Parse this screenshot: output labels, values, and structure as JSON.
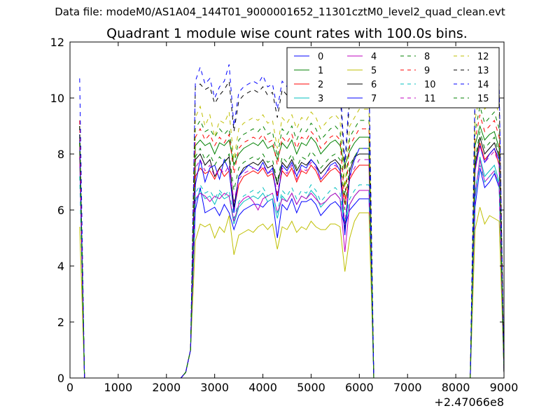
{
  "page_title": "Data file: modeM0/AS1A04_144T01_9000001652_11301cztM0_level2_quad_clean.evt",
  "chart_data": {
    "type": "line",
    "title": "Quadrant 1 module wise count rates with 100.0s bins.",
    "xlabel": "",
    "ylabel": "",
    "x_offset_label": "+2.47066e8",
    "xlim": [
      0,
      9000
    ],
    "ylim": [
      0,
      12
    ],
    "xticks": [
      0,
      1000,
      2000,
      3000,
      4000,
      5000,
      6000,
      7000,
      8000,
      9000
    ],
    "yticks": [
      0,
      2,
      4,
      6,
      8,
      10,
      12
    ],
    "grid": false,
    "legend_position": "top-right",
    "x": [
      200,
      300,
      400,
      500,
      600,
      700,
      800,
      900,
      1000,
      1100,
      1200,
      1300,
      1400,
      1500,
      1600,
      1700,
      1800,
      1900,
      2000,
      2100,
      2200,
      2300,
      2400,
      2500,
      2600,
      2700,
      2800,
      2900,
      3000,
      3100,
      3200,
      3300,
      3400,
      3500,
      3600,
      3700,
      3800,
      3900,
      4000,
      4100,
      4200,
      4300,
      4400,
      4500,
      4600,
      4700,
      4800,
      4900,
      5000,
      5100,
      5200,
      5300,
      5400,
      5500,
      5600,
      5700,
      5800,
      5900,
      6000,
      6100,
      6200,
      6300,
      6400,
      6500,
      6600,
      6700,
      6800,
      6900,
      7000,
      7100,
      7200,
      7300,
      7400,
      7500,
      7600,
      7700,
      7800,
      7900,
      8000,
      8100,
      8200,
      8300,
      8400,
      8500,
      8600,
      8700,
      8800,
      8900
    ],
    "gaps": [
      [
        400,
        2300
      ],
      [
        6400,
        8200
      ]
    ],
    "active_windows": [
      [
        200,
        300
      ],
      [
        2400,
        6300
      ],
      [
        8300,
        8900
      ]
    ],
    "series": [
      {
        "name": "0",
        "color": "#0000ff",
        "dash": "solid",
        "values_peak": 8.7,
        "values_window1": [
          6.0,
          6.8,
          5.9,
          6.0,
          6.1,
          5.8,
          6.2,
          5.9,
          5.3,
          5.8,
          6.0,
          6.1,
          6.2,
          6.2,
          6.1,
          6.3,
          6.4,
          5.0,
          6.2,
          6.0,
          6.4,
          5.9,
          6.3,
          6.3,
          6.4,
          6.2,
          5.8,
          6.0,
          6.2,
          6.3,
          6.1,
          5.4,
          6.0,
          6.2,
          6.4
        ],
        "values_window2": [
          6.1,
          7.5,
          6.8,
          7.0,
          7.3,
          6.8,
          0.2
        ]
      },
      {
        "name": "1",
        "color": "#008000",
        "dash": "solid",
        "values_peak": 8.6,
        "values_window1": [
          8.3,
          8.5,
          8.3,
          8.4,
          8.0,
          8.4,
          8.3,
          8.5,
          7.6,
          8.0,
          8.2,
          8.3,
          8.4,
          8.3,
          8.5,
          8.2,
          8.3,
          7.8,
          8.4,
          8.2,
          8.5,
          8.0,
          8.4,
          8.3,
          8.6,
          8.4,
          8.0,
          8.2,
          8.4,
          8.5,
          8.3,
          7.6,
          8.1,
          8.4,
          8.6
        ],
        "values_window2": [
          8.3,
          9.0,
          8.5,
          8.7,
          8.8,
          8.2,
          0.2
        ]
      },
      {
        "name": "2",
        "color": "#ff0000",
        "dash": "solid",
        "values_peak": 8.4,
        "values_window1": [
          7.2,
          7.5,
          7.3,
          7.4,
          7.1,
          7.5,
          7.2,
          7.4,
          6.0,
          6.9,
          7.2,
          7.3,
          7.4,
          7.3,
          7.5,
          7.2,
          7.3,
          6.5,
          7.4,
          7.2,
          7.5,
          7.0,
          7.4,
          7.3,
          7.6,
          7.4,
          7.0,
          7.2,
          7.4,
          7.5,
          7.3,
          6.2,
          7.1,
          7.4,
          7.6
        ],
        "values_window2": [
          7.4,
          8.4,
          7.8,
          8.0,
          8.2,
          7.6,
          0.2
        ]
      },
      {
        "name": "3",
        "color": "#00bfbf",
        "dash": "solid",
        "values_peak": 8.0,
        "values_window1": [
          6.3,
          6.7,
          6.4,
          6.5,
          6.2,
          6.6,
          6.4,
          6.5,
          5.5,
          6.1,
          6.3,
          6.4,
          6.5,
          6.4,
          6.6,
          6.3,
          6.4,
          5.7,
          6.5,
          6.3,
          6.6,
          6.2,
          6.5,
          6.4,
          6.7,
          6.5,
          6.1,
          6.3,
          6.5,
          6.6,
          6.4,
          5.5,
          6.2,
          6.5,
          6.7
        ],
        "values_window2": [
          6.4,
          7.9,
          7.2,
          7.4,
          7.6,
          7.0,
          0.2
        ]
      },
      {
        "name": "4",
        "color": "#bf00bf",
        "dash": "solid",
        "values_peak": 7.9,
        "values_window1": [
          6.4,
          6.6,
          6.5,
          6.3,
          6.5,
          6.4,
          6.6,
          6.5,
          5.6,
          6.2,
          6.4,
          6.5,
          6.3,
          6.0,
          6.4,
          6.5,
          6.6,
          5.9,
          6.4,
          6.3,
          6.6,
          6.2,
          6.5,
          6.4,
          6.6,
          6.4,
          6.2,
          6.3,
          6.5,
          6.6,
          6.4,
          4.5,
          6.2,
          6.5,
          6.7
        ],
        "values_window2": [
          6.6,
          7.8,
          7.0,
          7.2,
          7.4,
          6.9,
          0.2
        ]
      },
      {
        "name": "5",
        "color": "#bfbf00",
        "dash": "solid",
        "values_peak": 5.4,
        "values_window1": [
          4.9,
          5.5,
          5.4,
          5.5,
          5.0,
          5.4,
          5.2,
          5.8,
          4.4,
          5.1,
          5.2,
          5.3,
          5.2,
          5.4,
          5.5,
          5.3,
          5.5,
          4.6,
          5.4,
          5.3,
          5.6,
          5.2,
          5.4,
          5.3,
          5.6,
          5.4,
          5.3,
          5.3,
          5.5,
          5.5,
          5.4,
          3.8,
          5.0,
          5.6,
          5.9
        ],
        "values_window2": [
          5.3,
          6.1,
          5.5,
          5.8,
          5.7,
          5.6,
          0.2
        ]
      },
      {
        "name": "6",
        "color": "#000000",
        "dash": "solid",
        "values_peak": 8.5,
        "values_window1": [
          7.8,
          8.0,
          7.6,
          7.8,
          7.2,
          7.5,
          7.7,
          7.9,
          6.1,
          7.2,
          7.5,
          7.6,
          7.7,
          7.6,
          7.8,
          7.5,
          7.6,
          6.9,
          7.7,
          7.5,
          7.8,
          7.4,
          7.7,
          7.6,
          7.8,
          7.6,
          7.3,
          7.5,
          7.7,
          7.8,
          7.6,
          5.2,
          7.4,
          7.9,
          8.0
        ],
        "values_window2": [
          7.6,
          8.6,
          8.0,
          8.2,
          8.4,
          7.9,
          0.2
        ]
      },
      {
        "name": "7",
        "color": "#0000ff",
        "dash": "solid",
        "values_peak": 8.7,
        "values_window1": [
          6.9,
          7.8,
          7.0,
          7.5,
          7.6,
          7.1,
          7.8,
          7.4,
          5.9,
          7.2,
          7.4,
          7.6,
          7.5,
          7.4,
          7.7,
          7.3,
          7.5,
          6.3,
          7.6,
          7.4,
          7.7,
          7.2,
          7.6,
          7.5,
          7.8,
          7.6,
          7.1,
          7.3,
          7.6,
          7.7,
          7.4,
          5.1,
          7.2,
          7.8,
          8.2
        ],
        "values_window2": [
          7.5,
          8.3,
          7.7,
          8.0,
          8.2,
          7.8,
          0.2
        ]
      },
      {
        "name": "8",
        "color": "#008000",
        "dash": "dashed",
        "values_peak": 9.0,
        "values_window1": [
          8.9,
          9.2,
          8.8,
          8.9,
          8.6,
          8.9,
          8.7,
          8.9,
          7.6,
          8.5,
          8.7,
          8.8,
          8.9,
          8.8,
          9.0,
          8.7,
          8.8,
          7.9,
          8.9,
          8.7,
          9.0,
          8.5,
          8.9,
          8.8,
          9.1,
          8.9,
          8.5,
          8.7,
          8.9,
          9.0,
          8.8,
          6.5,
          8.6,
          8.9,
          9.2
        ],
        "values_window2": [
          8.8,
          9.7,
          9.1,
          9.3,
          9.5,
          8.9,
          0.2
        ]
      },
      {
        "name": "9",
        "color": "#ff0000",
        "dash": "dashed",
        "values_peak": 9.2,
        "values_window1": [
          8.6,
          8.9,
          8.5,
          8.7,
          8.3,
          8.6,
          8.4,
          8.7,
          7.3,
          8.2,
          8.4,
          8.5,
          8.6,
          8.5,
          8.7,
          8.4,
          8.5,
          7.6,
          8.6,
          8.4,
          8.7,
          8.2,
          8.6,
          8.5,
          8.8,
          8.6,
          8.2,
          8.4,
          8.6,
          8.7,
          8.5,
          6.2,
          8.3,
          8.6,
          8.9
        ],
        "values_window2": [
          8.5,
          9.4,
          8.8,
          9.0,
          9.2,
          8.6,
          0.2
        ]
      },
      {
        "name": "10",
        "color": "#00bfbf",
        "dash": "dashed",
        "values_peak": 7.2,
        "values_window1": [
          6.6,
          6.9,
          6.6,
          6.7,
          6.4,
          6.7,
          6.5,
          6.7,
          5.7,
          6.3,
          6.5,
          6.6,
          6.7,
          6.6,
          6.8,
          6.5,
          6.6,
          5.9,
          6.7,
          6.5,
          6.8,
          6.4,
          6.7,
          6.6,
          6.9,
          6.7,
          6.3,
          6.5,
          6.7,
          6.8,
          6.6,
          5.6,
          6.4,
          6.7,
          6.9
        ],
        "values_window2": [
          6.7,
          7.6,
          7.0,
          7.2,
          7.4,
          6.9,
          0.2
        ]
      },
      {
        "name": "11",
        "color": "#bf00bf",
        "dash": "dashed",
        "values_peak": 8.1,
        "values_window1": [
          7.5,
          7.8,
          7.4,
          7.6,
          7.2,
          7.5,
          7.3,
          7.6,
          6.3,
          7.1,
          7.3,
          7.4,
          7.5,
          7.4,
          7.6,
          7.3,
          7.4,
          6.6,
          7.5,
          7.3,
          7.6,
          7.1,
          7.5,
          7.4,
          7.7,
          7.5,
          7.1,
          7.3,
          7.5,
          7.6,
          7.4,
          5.5,
          7.2,
          7.5,
          7.8
        ],
        "values_window2": [
          7.4,
          8.3,
          7.7,
          7.9,
          8.1,
          7.6,
          0.2
        ]
      },
      {
        "name": "12",
        "color": "#bfbf00",
        "dash": "dashed",
        "values_peak": 9.0,
        "values_window1": [
          9.3,
          9.7,
          9.0,
          9.4,
          8.6,
          9.2,
          9.1,
          9.5,
          7.8,
          8.9,
          9.1,
          9.2,
          9.3,
          9.2,
          9.4,
          9.1,
          9.2,
          8.2,
          9.3,
          9.1,
          9.4,
          8.9,
          9.3,
          9.2,
          9.5,
          9.3,
          8.9,
          9.1,
          9.3,
          9.4,
          9.2,
          6.8,
          9.0,
          9.3,
          9.6
        ],
        "values_window2": [
          9.2,
          10.2,
          9.6,
          9.8,
          10.0,
          9.4,
          0.2
        ]
      },
      {
        "name": "13",
        "color": "#000000",
        "dash": "dashed",
        "values_peak": 9.0,
        "values_window1": [
          10.4,
          10.5,
          10.3,
          10.4,
          9.8,
          10.1,
          10.3,
          10.6,
          8.8,
          9.9,
          10.1,
          10.2,
          10.3,
          10.2,
          10.4,
          10.1,
          10.2,
          9.3,
          10.3,
          10.1,
          10.4,
          9.9,
          10.3,
          10.2,
          10.5,
          10.3,
          9.9,
          10.1,
          10.3,
          10.4,
          10.2,
          7.4,
          10.0,
          10.3,
          10.6
        ],
        "values_window2": [
          10.1,
          10.9,
          10.4,
          10.6,
          10.8,
          10.2,
          0.2
        ]
      },
      {
        "name": "14",
        "color": "#0000ff",
        "dash": "dashed",
        "values_peak": 10.7,
        "values_window1": [
          10.6,
          11.1,
          10.5,
          10.7,
          10.0,
          10.4,
          10.6,
          11.2,
          9.0,
          10.2,
          10.4,
          10.5,
          10.6,
          10.5,
          10.8,
          10.4,
          10.5,
          9.6,
          10.6,
          10.4,
          10.8,
          10.2,
          10.6,
          10.5,
          10.9,
          10.6,
          10.2,
          10.4,
          10.6,
          10.7,
          10.5,
          7.7,
          10.3,
          10.6,
          10.9
        ],
        "values_window2": [
          10.4,
          11.1,
          10.7,
          10.9,
          11.0,
          10.5,
          0.2
        ]
      },
      {
        "name": "15",
        "color": "#008000",
        "dash": "dashed",
        "values_peak": 8.4,
        "values_window1": [
          7.9,
          8.2,
          7.8,
          8.0,
          7.6,
          7.9,
          7.7,
          8.0,
          6.7,
          7.5,
          7.7,
          7.8,
          7.9,
          7.8,
          8.0,
          7.7,
          7.8,
          7.0,
          7.9,
          7.7,
          8.0,
          7.5,
          7.9,
          7.8,
          8.1,
          7.9,
          7.5,
          7.7,
          7.9,
          8.0,
          7.8,
          6.0,
          7.6,
          7.9,
          8.2
        ],
        "values_window2": [
          7.8,
          8.8,
          8.2,
          8.4,
          8.6,
          8.0,
          0.2
        ]
      }
    ]
  }
}
